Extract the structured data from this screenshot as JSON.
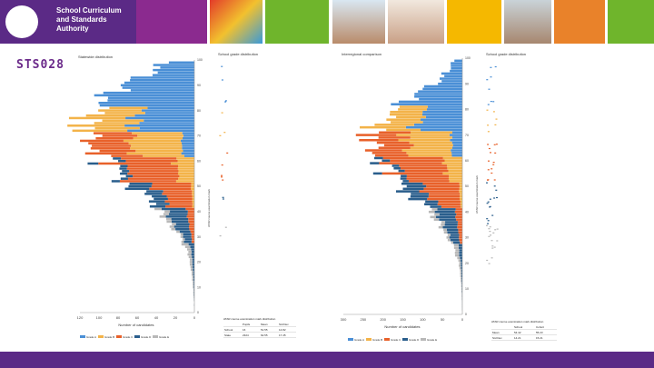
{
  "header": {
    "logo_text": "School Curriculum and Standards Authority",
    "tile_colors": [
      "#8b2a8f",
      "#6fb52c",
      "#f5b800",
      "#e9822a",
      "#6fb52c",
      "#5b2a86"
    ]
  },
  "slide": {
    "title": "STS028"
  },
  "colors": {
    "grade_a": "#4a8fd6",
    "grade_b": "#f3b349",
    "grade_c": "#e8612a",
    "grade_d": "#2a5e8c",
    "grade_e": "#b8b8b8"
  },
  "chart_data": [
    {
      "type": "bar",
      "orientation": "horizontal",
      "stacked": true,
      "title": "Statewide distribution",
      "xlabel": "Number of candidates",
      "ylabel": "ATAR course examination mark",
      "xlim": [
        120,
        0
      ],
      "ylim": [
        0,
        100
      ],
      "x_ticks": [
        "120",
        "100",
        "80",
        "60",
        "40",
        "20",
        "0"
      ],
      "y_ticks": [
        "100",
        "90",
        "80",
        "70",
        "60",
        "50",
        "40",
        "30",
        "20",
        "10",
        "0"
      ],
      "series": [
        "Grade A",
        "Grade B",
        "Grade C",
        "Grade D",
        "Grade E"
      ],
      "shape": {
        "peak_mark": 73,
        "peak_total": 123,
        "upper_spread": 16,
        "lower_spread": 21
      }
    },
    {
      "type": "scatter",
      "title": "School grade distribution",
      "ylabel": "ATAR course examination mark",
      "table": {
        "title": "ATAR course examination mark distribution",
        "headers": [
          "",
          "Pupils",
          "Mean",
          "Std Dev"
        ],
        "rows": [
          [
            "School",
            "16",
            "51.55",
            "14.82"
          ],
          [
            "State",
            "2324",
            "62.55",
            "17.45"
          ]
        ]
      }
    },
    {
      "type": "bar",
      "orientation": "horizontal",
      "stacked": true,
      "title": "Interregional comparison",
      "xlabel": "Number of candidates",
      "ylabel": "ATAR course examination mark",
      "xlim": [
        300,
        0
      ],
      "ylim": [
        0,
        100
      ],
      "x_ticks": [
        "300",
        "250",
        "200",
        "150",
        "100",
        "50",
        "0"
      ],
      "y_ticks": [
        "100",
        "90",
        "80",
        "70",
        "60",
        "50",
        "40",
        "30",
        "20",
        "10",
        "0"
      ],
      "series": [
        "Grade A",
        "Grade B",
        "Grade C",
        "Grade D",
        "Grade E"
      ],
      "shape": {
        "peak_mark": 68,
        "peak_total": 250,
        "upper_spread": 14,
        "lower_spread": 19
      }
    },
    {
      "type": "scatter",
      "title": "School grade distribution",
      "table": {
        "title": "ATAR course examination mark distribution",
        "headers": [
          "",
          "School",
          "Cohort"
        ],
        "rows": [
          [
            "Mean",
            "54.42",
            "55.23"
          ],
          [
            "Std Dev",
            "14.21",
            "15.21"
          ]
        ]
      }
    }
  ]
}
